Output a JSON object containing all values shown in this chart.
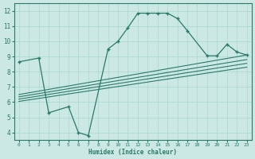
{
  "bg_color": "#cce8e4",
  "grid_color": "#aad8d0",
  "line_color": "#2a7a6a",
  "xlabel": "Humidex (Indice chaleur)",
  "xlim": [
    -0.5,
    23.5
  ],
  "ylim": [
    3.5,
    12.5
  ],
  "xticks": [
    0,
    1,
    2,
    3,
    4,
    5,
    6,
    7,
    8,
    9,
    10,
    11,
    12,
    13,
    14,
    15,
    16,
    17,
    18,
    19,
    20,
    21,
    22,
    23
  ],
  "yticks": [
    4,
    5,
    6,
    7,
    8,
    9,
    10,
    11,
    12
  ],
  "main_x": [
    0,
    2,
    3,
    5,
    6,
    7,
    9,
    10,
    11,
    12,
    13,
    14,
    15,
    16,
    17,
    19,
    20,
    21,
    22,
    23
  ],
  "main_y": [
    8.65,
    8.9,
    5.3,
    5.7,
    4.0,
    3.8,
    9.5,
    10.0,
    10.9,
    11.85,
    11.85,
    11.85,
    11.85,
    11.5,
    10.7,
    9.05,
    9.05,
    9.8,
    9.3,
    9.1
  ],
  "lines": [
    {
      "x": [
        0,
        23
      ],
      "y": [
        6.5,
        9.1
      ]
    },
    {
      "x": [
        0,
        23
      ],
      "y": [
        6.35,
        8.8
      ]
    },
    {
      "x": [
        0,
        23
      ],
      "y": [
        6.2,
        8.55
      ]
    },
    {
      "x": [
        0,
        23
      ],
      "y": [
        6.05,
        8.3
      ]
    }
  ]
}
